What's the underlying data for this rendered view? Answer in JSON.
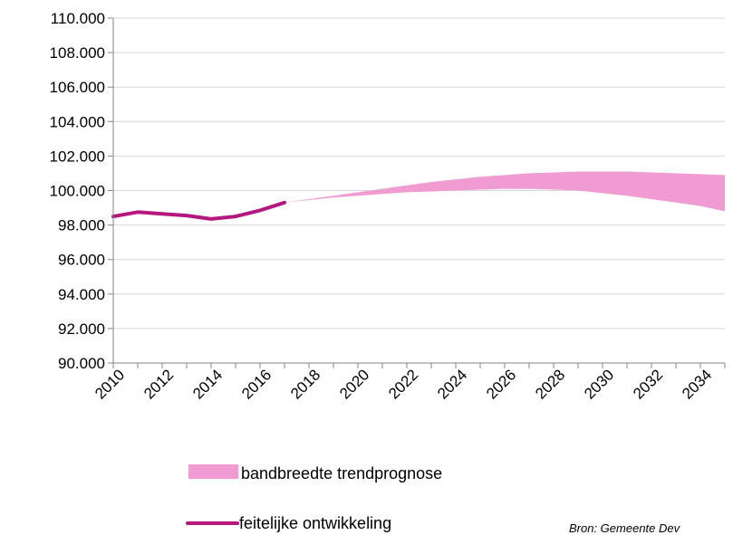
{
  "chart_data": {
    "type": "line",
    "x_ticks": [
      "2010",
      "2012",
      "2014",
      "2016",
      "2018",
      "2020",
      "2022",
      "2024",
      "2026",
      "2028",
      "2030",
      "2032",
      "2034"
    ],
    "y_ticks": [
      "90.000",
      "92.000",
      "94.000",
      "96.000",
      "98.000",
      "100.000",
      "102.000",
      "104.000",
      "106.000",
      "108.000",
      "110.000"
    ],
    "xlim": [
      2010,
      2035
    ],
    "ylim": [
      90000,
      110000
    ],
    "grid": "horizontal",
    "series": [
      {
        "name": "feitelijke ontwikkeling",
        "type": "line",
        "color": "#b5177e",
        "x": [
          2010,
          2011,
          2012,
          2013,
          2014,
          2015,
          2016,
          2017
        ],
        "y": [
          98500,
          98750,
          98650,
          98550,
          98350,
          98500,
          98850,
          99300
        ]
      },
      {
        "name": "bandbreedte trendprognose",
        "type": "band",
        "color": "#f19bd3",
        "x": [
          2017,
          2018,
          2019,
          2020,
          2021,
          2022,
          2023,
          2024,
          2025,
          2026,
          2027,
          2028,
          2029,
          2030,
          2031,
          2032,
          2033,
          2034,
          2035
        ],
        "upper": [
          99300,
          99500,
          99700,
          99900,
          100100,
          100300,
          100500,
          100650,
          100800,
          100900,
          101000,
          101050,
          101100,
          101100,
          101100,
          101050,
          101000,
          100950,
          100900
        ],
        "lower": [
          99300,
          99450,
          99600,
          99700,
          99800,
          99900,
          99950,
          100000,
          100050,
          100100,
          100100,
          100050,
          100000,
          99850,
          99700,
          99500,
          99300,
          99100,
          98800
        ]
      }
    ],
    "legend_position": "bottom"
  },
  "source_text": "Bron: Gemeente Dev"
}
